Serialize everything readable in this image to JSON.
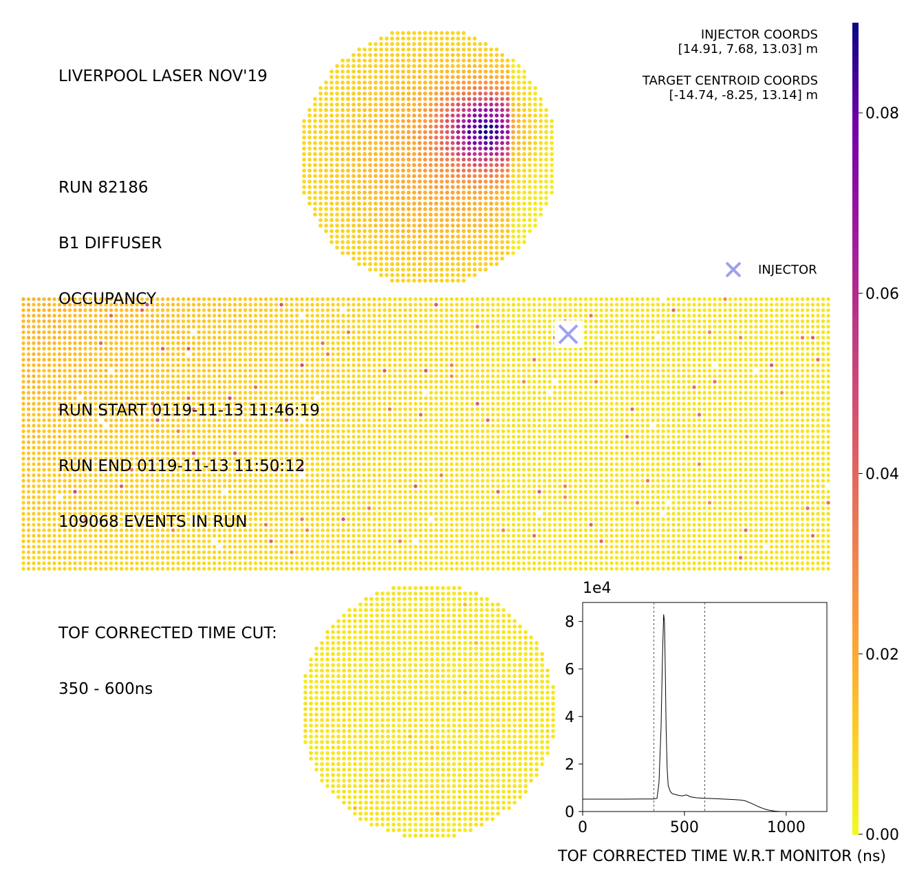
{
  "info": {
    "title": "LIVERPOOL LASER NOV'19",
    "run": "RUN 82186",
    "diffuser": "B1 DIFFUSER",
    "quantity": "OCCUPANCY",
    "run_start": "RUN START 0119-11-13 11:46:19",
    "run_end": "RUN END 0119-11-13 11:50:12",
    "events": "109068 EVENTS IN RUN",
    "cut_label": "TOF CORRECTED TIME CUT:",
    "cut_range": "350 - 600ns"
  },
  "coords": {
    "injector_label": "INJECTOR COORDS",
    "injector_value": "[14.91, 7.68, 13.03] m",
    "target_label": "TARGET CENTROID COORDS",
    "target_value": "[-14.74, -8.25, 13.14] m"
  },
  "legend": {
    "injector": "INJECTOR",
    "marker_color": "#9f9ff0"
  },
  "colorbar": {
    "colormap": "plasma_r",
    "range": [
      0.0,
      0.09
    ],
    "ticks": [
      "0.00",
      "0.02",
      "0.04",
      "0.06",
      "0.08"
    ],
    "tick_values": [
      0.0,
      0.02,
      0.04,
      0.06,
      0.08
    ]
  },
  "chart_data": [
    {
      "type": "heatmap",
      "name": "occupancy-map",
      "panels": [
        "top-cap",
        "barrel",
        "bottom-cap"
      ],
      "hotspot_panel": "top-cap",
      "hotspot_peak": 0.09,
      "background_level": 0.005,
      "injector_panel": "barrel",
      "colorbar_range": [
        0.0,
        0.09
      ]
    },
    {
      "type": "line",
      "name": "tof-histogram",
      "xlabel": "TOF CORRECTED TIME W.R.T MONITOR (ns)",
      "ylabel": "",
      "y_offset_label": "1e4",
      "xlim": [
        0,
        1200
      ],
      "ylim": [
        0,
        8.8
      ],
      "x_ticks": [
        0,
        500,
        1000
      ],
      "x_tick_labels": [
        "0",
        "500",
        "1000"
      ],
      "y_ticks": [
        0,
        2,
        4,
        6,
        8
      ],
      "y_tick_labels": [
        "0",
        "2",
        "4",
        "6",
        "8"
      ],
      "cut_lines": [
        350,
        600
      ],
      "x": [
        0,
        100,
        200,
        300,
        350,
        365,
        375,
        385,
        392,
        398,
        402,
        406,
        410,
        415,
        420,
        430,
        440,
        455,
        470,
        490,
        510,
        530,
        560,
        600,
        650,
        700,
        750,
        780,
        800,
        820,
        840,
        860,
        880,
        900,
        920,
        940,
        960,
        980,
        1000
      ],
      "y": [
        0.52,
        0.52,
        0.52,
        0.53,
        0.53,
        0.55,
        1.2,
        3.5,
        6.5,
        8.3,
        8.0,
        6.0,
        3.5,
        1.8,
        1.1,
        0.85,
        0.75,
        0.72,
        0.68,
        0.66,
        0.7,
        0.62,
        0.58,
        0.56,
        0.54,
        0.52,
        0.5,
        0.48,
        0.45,
        0.38,
        0.3,
        0.22,
        0.15,
        0.09,
        0.05,
        0.02,
        0.01,
        0.0,
        0.0
      ]
    }
  ]
}
